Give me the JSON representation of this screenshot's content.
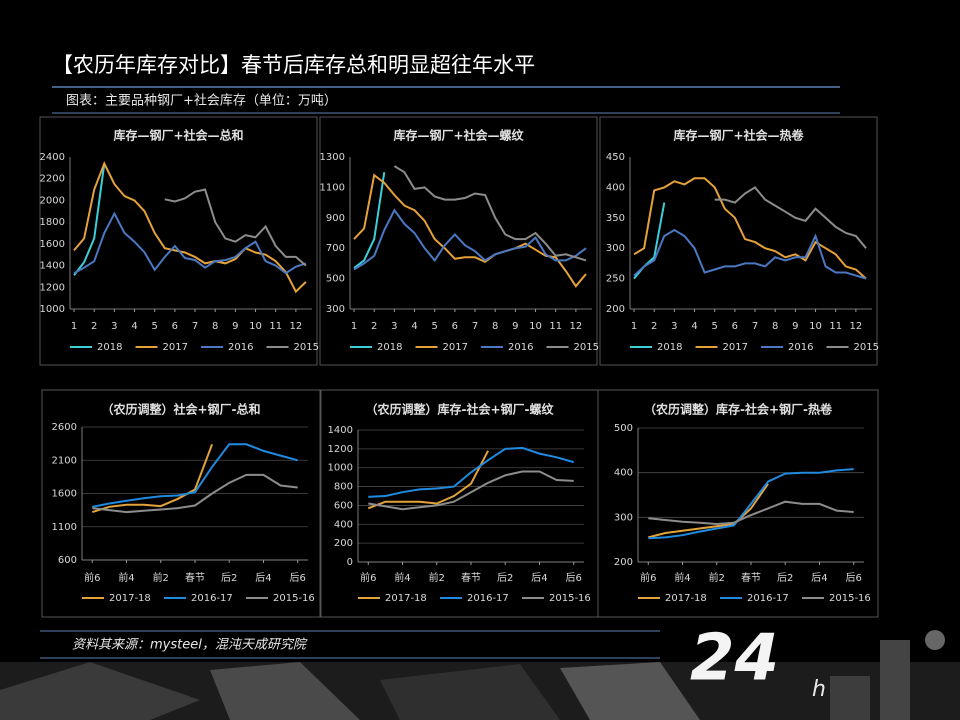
{
  "header": {
    "title": "【农历年库存对比】春节后库存总和明显超往年水平",
    "subtitle": "图表：主要品种钢厂+社会库存（单位：万吨）"
  },
  "footer": {
    "source": "资料其来源：mysteel，混沌天成研究院",
    "logo": "24",
    "logo_suffix": "h"
  },
  "chart_data": [
    {
      "type": "line",
      "title": "库存—钢厂+社会—总和",
      "x": [
        1,
        1.5,
        2,
        2.5,
        3,
        3.5,
        4,
        4.5,
        5,
        5.5,
        6,
        6.5,
        7,
        7.5,
        8,
        8.5,
        9,
        9.5,
        10,
        10.5,
        11,
        11.5,
        12,
        12.5
      ],
      "xlim": [
        0.8,
        12.8
      ],
      "xticks": [
        1,
        2,
        3,
        4,
        5,
        6,
        7,
        8,
        9,
        10,
        11,
        12
      ],
      "ylim": [
        1000,
        2400
      ],
      "yticks": [
        1000,
        1200,
        1400,
        1600,
        1800,
        2000,
        2200,
        2400
      ],
      "grid": false,
      "series": [
        {
          "name": "2018",
          "color": "#3ccfd8",
          "values": [
            1310,
            1430,
            1650,
            2340,
            null,
            null,
            null,
            null,
            null,
            null,
            null,
            null,
            null,
            null,
            null,
            null,
            null,
            null,
            null,
            null,
            null,
            null,
            null,
            null
          ]
        },
        {
          "name": "2017",
          "color": "#e5a13a",
          "values": [
            1540,
            1650,
            2100,
            2340,
            2150,
            2040,
            2000,
            1900,
            1700,
            1560,
            1540,
            1520,
            1480,
            1420,
            1440,
            1420,
            1460,
            1560,
            1520,
            1500,
            1440,
            1340,
            1160,
            1250
          ]
        },
        {
          "name": "2016",
          "color": "#4a78c2",
          "values": [
            1330,
            1380,
            1440,
            1700,
            1880,
            1700,
            1620,
            1520,
            1360,
            1480,
            1580,
            1470,
            1450,
            1380,
            1440,
            1450,
            1480,
            1560,
            1620,
            1440,
            1400,
            1330,
            1390,
            1420
          ]
        },
        {
          "name": "2015",
          "color": "#8c8c8c",
          "values": [
            null,
            null,
            null,
            null,
            null,
            null,
            null,
            null,
            null,
            2010,
            1990,
            2020,
            2080,
            2100,
            1800,
            1650,
            1620,
            1680,
            1660,
            1760,
            1580,
            1480,
            1480,
            1400
          ]
        }
      ]
    },
    {
      "type": "line",
      "title": "库存—钢厂+社会—螺纹",
      "x": [
        1,
        1.5,
        2,
        2.5,
        3,
        3.5,
        4,
        4.5,
        5,
        5.5,
        6,
        6.5,
        7,
        7.5,
        8,
        8.5,
        9,
        9.5,
        10,
        10.5,
        11,
        11.5,
        12,
        12.5
      ],
      "xlim": [
        0.8,
        12.8
      ],
      "xticks": [
        1,
        2,
        3,
        4,
        5,
        6,
        7,
        8,
        9,
        10,
        11,
        12
      ],
      "ylim": [
        300,
        1300
      ],
      "yticks": [
        300,
        500,
        700,
        900,
        1100,
        1300
      ],
      "grid": false,
      "series": [
        {
          "name": "2018",
          "color": "#3ccfd8",
          "values": [
            570,
            620,
            760,
            1200,
            null,
            null,
            null,
            null,
            null,
            null,
            null,
            null,
            null,
            null,
            null,
            null,
            null,
            null,
            null,
            null,
            null,
            null,
            null,
            null
          ]
        },
        {
          "name": "2017",
          "color": "#e5a13a",
          "values": [
            760,
            830,
            1180,
            1130,
            1050,
            980,
            950,
            880,
            760,
            700,
            630,
            640,
            640,
            610,
            660,
            680,
            700,
            730,
            690,
            650,
            640,
            550,
            450,
            530
          ]
        },
        {
          "name": "2016",
          "color": "#4a78c2",
          "values": [
            560,
            600,
            650,
            820,
            950,
            860,
            800,
            700,
            620,
            720,
            790,
            720,
            680,
            620,
            660,
            680,
            700,
            710,
            770,
            660,
            620,
            620,
            650,
            700
          ]
        },
        {
          "name": "2015",
          "color": "#8c8c8c",
          "values": [
            null,
            null,
            null,
            null,
            1240,
            1200,
            1090,
            1100,
            1040,
            1020,
            1020,
            1030,
            1060,
            1050,
            900,
            790,
            760,
            760,
            800,
            730,
            650,
            660,
            640,
            620
          ]
        }
      ]
    },
    {
      "type": "line",
      "title": "库存—钢厂+社会—热卷",
      "x": [
        1,
        1.5,
        2,
        2.5,
        3,
        3.5,
        4,
        4.5,
        5,
        5.5,
        6,
        6.5,
        7,
        7.5,
        8,
        8.5,
        9,
        9.5,
        10,
        10.5,
        11,
        11.5,
        12,
        12.5
      ],
      "xlim": [
        0.8,
        12.8
      ],
      "xticks": [
        1,
        2,
        3,
        4,
        5,
        6,
        7,
        8,
        9,
        10,
        11,
        12
      ],
      "ylim": [
        200,
        450
      ],
      "yticks": [
        200,
        250,
        300,
        350,
        400,
        450
      ],
      "grid": false,
      "series": [
        {
          "name": "2018",
          "color": "#3ccfd8",
          "values": [
            250,
            270,
            285,
            375,
            null,
            null,
            null,
            null,
            null,
            null,
            null,
            null,
            null,
            null,
            null,
            null,
            null,
            null,
            null,
            null,
            null,
            null,
            null,
            null
          ]
        },
        {
          "name": "2017",
          "color": "#e5a13a",
          "values": [
            290,
            300,
            395,
            400,
            410,
            405,
            415,
            415,
            400,
            365,
            350,
            315,
            310,
            300,
            295,
            285,
            290,
            280,
            310,
            300,
            290,
            270,
            265,
            250
          ]
        },
        {
          "name": "2016",
          "color": "#4a78c2",
          "values": [
            255,
            270,
            280,
            320,
            330,
            320,
            300,
            260,
            265,
            270,
            270,
            275,
            275,
            270,
            285,
            280,
            285,
            285,
            320,
            270,
            260,
            260,
            255,
            250
          ]
        },
        {
          "name": "2015",
          "color": "#8c8c8c",
          "values": [
            null,
            null,
            null,
            null,
            null,
            null,
            null,
            null,
            380,
            380,
            375,
            390,
            400,
            380,
            370,
            360,
            350,
            345,
            365,
            350,
            335,
            325,
            320,
            300
          ]
        }
      ]
    },
    {
      "type": "line",
      "title": "（农历调整）社会+钢厂-总和",
      "x": [
        -6,
        -5,
        -4,
        -3,
        -2,
        -1,
        0,
        1,
        2,
        3,
        4,
        5,
        6
      ],
      "xlim": [
        -6.6,
        6.6
      ],
      "xticks": [
        {
          "value": -6,
          "label": "前6"
        },
        {
          "value": -4,
          "label": "前4"
        },
        {
          "value": -2,
          "label": "前2"
        },
        {
          "value": 0,
          "label": "春节"
        },
        {
          "value": 2,
          "label": "后2"
        },
        {
          "value": 4,
          "label": "后4"
        },
        {
          "value": 6,
          "label": "后6"
        }
      ],
      "ylim": [
        600,
        2600
      ],
      "yticks": [
        600,
        1100,
        1600,
        2100,
        2600
      ],
      "grid": true,
      "series": [
        {
          "name": "2017-18",
          "color": "#e3a33b",
          "values": [
            1320,
            1400,
            1430,
            1430,
            1410,
            1520,
            1660,
            2340,
            null,
            null,
            null,
            null,
            null
          ]
        },
        {
          "name": "2016-17",
          "color": "#1f8ae0",
          "values": [
            1400,
            1450,
            1490,
            1530,
            1560,
            1570,
            1620,
            2000,
            2340,
            2340,
            2240,
            2170,
            2100
          ]
        },
        {
          "name": "2015-16",
          "color": "#8c8c8c",
          "values": [
            1380,
            1350,
            1320,
            1340,
            1360,
            1380,
            1420,
            1600,
            1760,
            1880,
            1880,
            1720,
            1690
          ]
        }
      ]
    },
    {
      "type": "line",
      "title": "（农历调整）库存-社会+钢厂-螺纹",
      "x": [
        -6,
        -5,
        -4,
        -3,
        -2,
        -1,
        0,
        1,
        2,
        3,
        4,
        5,
        6
      ],
      "xlim": [
        -6.6,
        6.6
      ],
      "xticks": [
        {
          "value": -6,
          "label": "前6"
        },
        {
          "value": -4,
          "label": "前4"
        },
        {
          "value": -2,
          "label": "前2"
        },
        {
          "value": 0,
          "label": "春节"
        },
        {
          "value": 2,
          "label": "后2"
        },
        {
          "value": 4,
          "label": "后4"
        },
        {
          "value": 6,
          "label": "后6"
        }
      ],
      "ylim": [
        0,
        1400
      ],
      "yticks": [
        0,
        200,
        400,
        600,
        800,
        1000,
        1200,
        1400
      ],
      "grid": true,
      "series": [
        {
          "name": "2017-18",
          "color": "#e3a33b",
          "values": [
            570,
            640,
            640,
            640,
            620,
            700,
            830,
            1180,
            null,
            null,
            null,
            null,
            null
          ]
        },
        {
          "name": "2016-17",
          "color": "#1f8ae0",
          "values": [
            690,
            700,
            740,
            770,
            780,
            800,
            950,
            1080,
            1200,
            1210,
            1150,
            1110,
            1060
          ]
        },
        {
          "name": "2015-16",
          "color": "#8c8c8c",
          "values": [
            620,
            590,
            560,
            580,
            600,
            640,
            740,
            840,
            920,
            960,
            960,
            870,
            860
          ]
        }
      ]
    },
    {
      "type": "line",
      "title": "（农历调整）库存-社会+钢厂-热卷",
      "x": [
        -6,
        -5,
        -4,
        -3,
        -2,
        -1,
        0,
        1,
        2,
        3,
        4,
        5,
        6
      ],
      "xlim": [
        -6.6,
        6.6
      ],
      "xticks": [
        {
          "value": -6,
          "label": "前6"
        },
        {
          "value": -4,
          "label": "前4"
        },
        {
          "value": -2,
          "label": "前2"
        },
        {
          "value": 0,
          "label": "春节"
        },
        {
          "value": 2,
          "label": "后2"
        },
        {
          "value": 4,
          "label": "后4"
        },
        {
          "value": 6,
          "label": "后6"
        }
      ],
      "ylim": [
        200,
        500
      ],
      "yticks": [
        200,
        300,
        400,
        500
      ],
      "grid": true,
      "series": [
        {
          "name": "2017-18",
          "color": "#e3a33b",
          "values": [
            255,
            265,
            270,
            275,
            280,
            285,
            320,
            375,
            null,
            null,
            null,
            null,
            null
          ]
        },
        {
          "name": "2016-17",
          "color": "#1f8ae0",
          "values": [
            253,
            255,
            260,
            268,
            275,
            282,
            330,
            380,
            398,
            400,
            400,
            405,
            408
          ]
        },
        {
          "name": "2015-16",
          "color": "#8c8c8c",
          "values": [
            298,
            294,
            290,
            288,
            285,
            288,
            305,
            320,
            335,
            330,
            330,
            315,
            312
          ]
        }
      ]
    }
  ]
}
